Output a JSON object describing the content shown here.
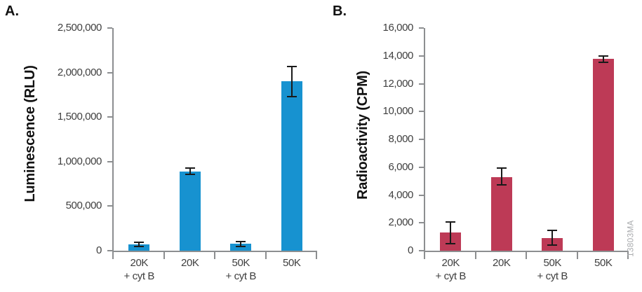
{
  "figure": {
    "watermark": "13803MA",
    "colors": {
      "bar_blue": "#1792D0",
      "bar_red": "#BD3A56",
      "axis": "#8C8E90",
      "tick_text": "#3F3F3F",
      "error": "#1A1A1A",
      "watermark_gray": "#A8AAAD"
    }
  },
  "chart_data": [
    {
      "panel": "A.",
      "type": "bar",
      "ylabel": "Luminescence (RLU)",
      "xlabel": "",
      "categories": [
        "20K + cyt B",
        "20K",
        "50K + cyt B",
        "50K"
      ],
      "category_lines": [
        [
          "20K",
          "+ cyt B"
        ],
        [
          "20K",
          ""
        ],
        [
          "50K",
          "+ cyt B"
        ],
        [
          "50K",
          ""
        ]
      ],
      "values": [
        70000,
        890000,
        75000,
        1900000
      ],
      "error_low": [
        45000,
        855000,
        50000,
        1730000
      ],
      "error_high": [
        95000,
        930000,
        100000,
        2070000
      ],
      "ylim": [
        0,
        2500000
      ],
      "ytick_labels": [
        "0",
        "500,000",
        "1,000,000",
        "1,500,000",
        "2,000,000",
        "2,500,000"
      ],
      "bar_color": "#1792D0",
      "grid": false,
      "legend": null
    },
    {
      "panel": "B.",
      "type": "bar",
      "ylabel": "Radioactivity (CPM)",
      "xlabel": "",
      "categories": [
        "20K + cyt B",
        "20K",
        "50K + cyt B",
        "50K"
      ],
      "category_lines": [
        [
          "20K",
          "+ cyt B"
        ],
        [
          "20K",
          ""
        ],
        [
          "50K",
          "+ cyt B"
        ],
        [
          "50K",
          ""
        ]
      ],
      "values": [
        1300,
        5300,
        900,
        13800
      ],
      "error_low": [
        500,
        4750,
        380,
        13550
      ],
      "error_high": [
        2050,
        5950,
        1450,
        14000
      ],
      "ylim": [
        0,
        16000
      ],
      "ytick_labels": [
        "0",
        "2,000",
        "4,000",
        "6,000",
        "8,000",
        "10,000",
        "12,000",
        "14,000",
        "16,000"
      ],
      "bar_color": "#BD3A56",
      "grid": false,
      "legend": null
    }
  ]
}
